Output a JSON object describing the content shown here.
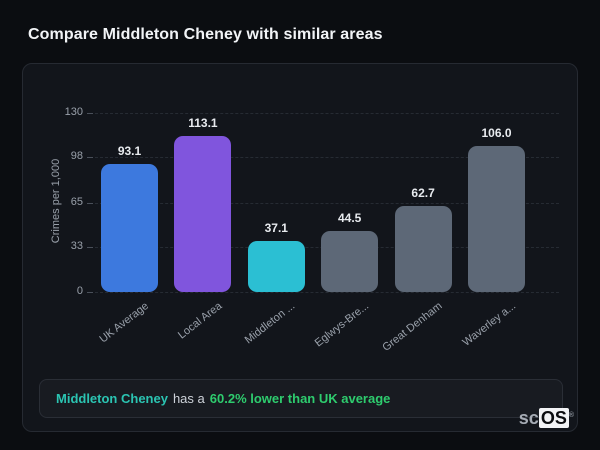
{
  "page": {
    "title": "Compare Middleton Cheney with similar areas"
  },
  "chart_data": {
    "type": "bar",
    "title": "Compare Middleton Cheney with similar areas",
    "xlabel": "",
    "ylabel": "Crimes per 1,000",
    "ylim": [
      0,
      130
    ],
    "yticks": [
      0,
      33,
      65,
      98,
      130
    ],
    "grid": "horizontal-dashed",
    "legend": "none",
    "categories": [
      "UK Average",
      "Local Area",
      "Middleton ...",
      "Eglwys-Bre...",
      "Great Denham",
      "Waverley a..."
    ],
    "values": [
      93.1,
      113.1,
      37.1,
      44.5,
      62.7,
      106.0
    ],
    "value_labels": [
      "93.1",
      "113.1",
      "37.1",
      "44.5",
      "62.7",
      "106.0"
    ],
    "bar_colors": [
      "#3d79de",
      "#8055dd",
      "#2bbfd3",
      "#5d6877",
      "#5d6877",
      "#5d6877"
    ]
  },
  "note": {
    "area_name": "Middleton Cheney",
    "connector": "has a",
    "highlight": "60.2% lower than UK average"
  },
  "logo": {
    "prefix": "sc",
    "suffix": "OS",
    "registered": "®"
  },
  "colors": {
    "page_bg": "#0b0d11",
    "panel_bg": "#12151b",
    "panel_border": "#262a32",
    "text_primary": "#f2f4f7",
    "text_muted": "#99a0aa",
    "grid": "#262b33",
    "note_bg": "#181b21",
    "note_border": "#2a2e36",
    "area_accent": "#2bc4b2",
    "highlight_green": "#2ecc6e"
  }
}
